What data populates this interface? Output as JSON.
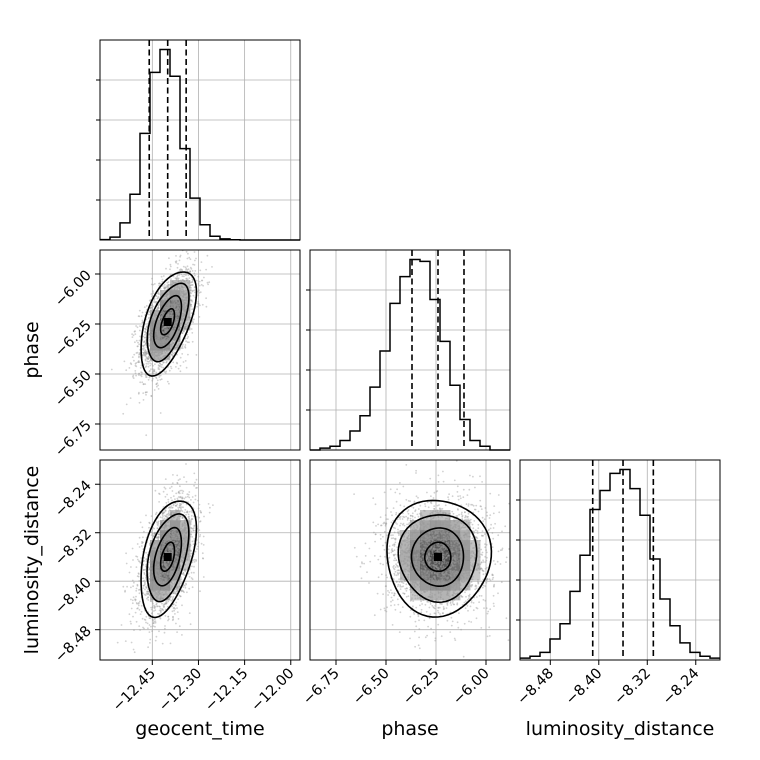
{
  "chart_data": {
    "type": "corner",
    "parameters": [
      "geocent_time",
      "phase",
      "luminosity_distance"
    ],
    "axes": {
      "geocent_time": {
        "label": "geocent_time",
        "range": [
          -12.62,
          -11.97
        ],
        "ticks": [
          -12.45,
          -12.3,
          -12.15,
          -12.0
        ],
        "tick_labels": [
          "−12.45",
          "−12.30",
          "−12.15",
          "−12.00"
        ],
        "quantiles": [
          -12.46,
          -12.4,
          -12.34
        ],
        "median": -12.4,
        "std": 0.045
      },
      "phase": {
        "label": "phase",
        "range": [
          -6.88,
          -5.88
        ],
        "ticks": [
          -6.75,
          -6.5,
          -6.25,
          -6.0
        ],
        "tick_labels": [
          "−6.75",
          "−6.50",
          "−6.25",
          "−6.00"
        ],
        "quantiles": [
          -6.37,
          -6.24,
          -6.11
        ],
        "median": -6.24,
        "std": 0.13
      },
      "luminosity_distance": {
        "label": "luminosity_distance",
        "range": [
          -8.53,
          -8.2
        ],
        "ticks": [
          -8.48,
          -8.4,
          -8.32,
          -8.24
        ],
        "tick_labels": [
          "−8.48",
          "−8.40",
          "−8.32",
          "−8.24"
        ],
        "quantiles": [
          -8.41,
          -8.36,
          -8.31
        ],
        "median": -8.36,
        "std": 0.048
      }
    },
    "histograms": {
      "geocent_time": {
        "bin_edges": [
          -12.62,
          -12.5875,
          -12.555,
          -12.5225,
          -12.49,
          -12.4575,
          -12.425,
          -12.3925,
          -12.36,
          -12.3275,
          -12.295,
          -12.2625,
          -12.23,
          -12.1975,
          -12.165,
          -12.1325,
          -12.1,
          -12.0675,
          -12.035,
          -12.0025,
          -11.97
        ],
        "counts": [
          0.2,
          1.5,
          9,
          24,
          56,
          88,
          100,
          86,
          48,
          22,
          8,
          2,
          0.6,
          0.1,
          0,
          0,
          0,
          0,
          0,
          0
        ]
      },
      "phase": {
        "bin_edges": [
          -6.88,
          -6.83,
          -6.78,
          -6.73,
          -6.68,
          -6.63,
          -6.58,
          -6.53,
          -6.48,
          -6.43,
          -6.38,
          -6.33,
          -6.28,
          -6.23,
          -6.18,
          -6.13,
          -6.08,
          -6.03,
          -5.98,
          -5.93,
          -5.88
        ],
        "counts": [
          0,
          1,
          2,
          5,
          10,
          18,
          33,
          52,
          77,
          91,
          100,
          99,
          79,
          57,
          34,
          16,
          5,
          2,
          0,
          0
        ]
      },
      "luminosity_distance": {
        "bin_edges": [
          -8.53,
          -8.5135,
          -8.497,
          -8.4805,
          -8.464,
          -8.4475,
          -8.431,
          -8.4145,
          -8.398,
          -8.3815,
          -8.365,
          -8.3485,
          -8.332,
          -8.3155,
          -8.299,
          -8.2825,
          -8.266,
          -8.2495,
          -8.233,
          -8.2165,
          -8.2
        ],
        "counts": [
          1,
          2,
          4,
          11,
          19,
          36,
          55,
          79,
          89,
          98,
          100,
          90,
          76,
          53,
          32,
          18,
          9,
          4,
          2,
          1
        ]
      }
    },
    "correlations": {
      "phase_vs_geocent_time": 0.55,
      "luminosity_distance_vs_geocent_time": 0.45,
      "luminosity_distance_vs_phase": 0.0
    },
    "contour_levels_sigma": [
      0.5,
      1.0,
      1.5,
      2.0
    ],
    "colors": {
      "line": "#000000",
      "grid": "#b0b0b0",
      "points": "#9a9a9a"
    }
  }
}
